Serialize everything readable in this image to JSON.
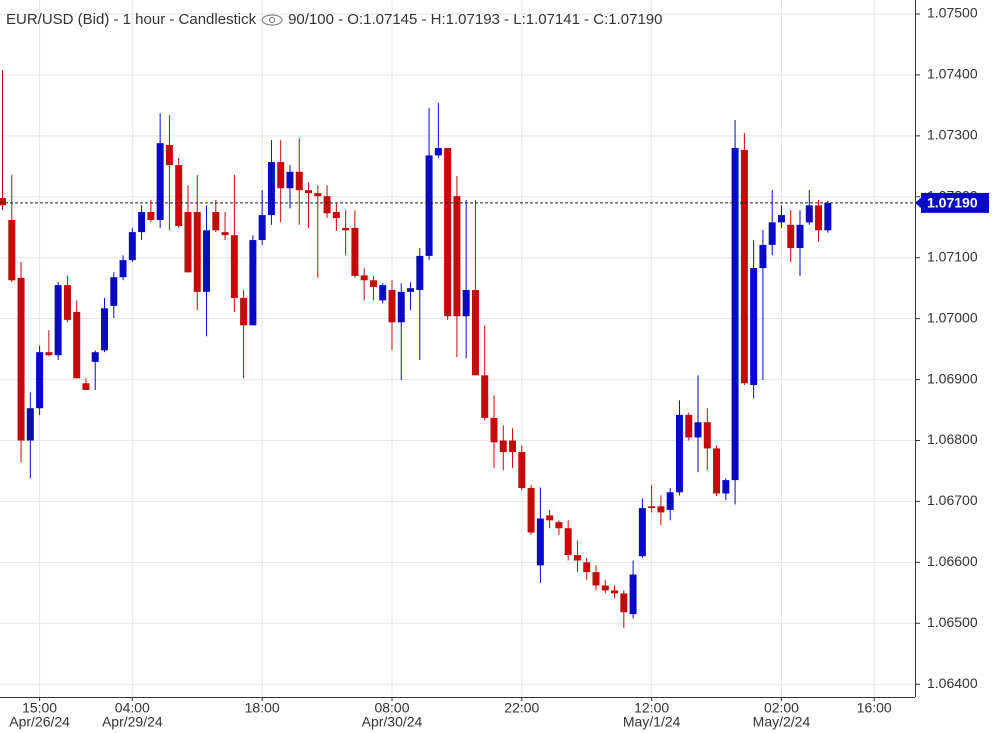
{
  "chart_data": {
    "type": "candlestick",
    "title": "EUR/USD (Bid) - 1 hour - Candlestick",
    "subtitle": "90/100 - O:1.07145 - H:1.07193 - L:1.07141 - C:1.07190",
    "up_color": "#0a0ac4",
    "down_color": "#c40a0a",
    "grid": true,
    "x": [
      0,
      1,
      2,
      3,
      4,
      5,
      6,
      7,
      8,
      9,
      10,
      11,
      12,
      13,
      14,
      15,
      16,
      17,
      18,
      19,
      20,
      21,
      22,
      23,
      24,
      25,
      26,
      27,
      28,
      29,
      30,
      31,
      32,
      33,
      34,
      35,
      36,
      37,
      38,
      39,
      40,
      41,
      42,
      43,
      44,
      45,
      46,
      47,
      48,
      49,
      50,
      51,
      52,
      53,
      54,
      55,
      56,
      57,
      58,
      59,
      60,
      61,
      62,
      63,
      64,
      65,
      66,
      67,
      68,
      69,
      70,
      71,
      72,
      73,
      74,
      75,
      76,
      77,
      78,
      79,
      80,
      81,
      82,
      83,
      84,
      85,
      86,
      87,
      88,
      89
    ],
    "open": [
      1.07198,
      1.07162,
      1.07067,
      1.068,
      1.06853,
      1.06945,
      1.0694,
      1.07055,
      1.07011,
      1.06894,
      1.06929,
      1.06948,
      1.07021,
      1.07068,
      1.07096,
      1.07142,
      1.07175,
      1.07162,
      1.07285,
      1.07252,
      1.07175,
      1.07175,
      1.07044,
      1.07175,
      1.07142,
      1.07137,
      1.07034,
      1.06989,
      1.07129,
      1.0717,
      1.07257,
      1.07214,
      1.07241,
      1.07211,
      1.07206,
      1.07201,
      1.07175,
      1.07149,
      1.07149,
      1.07071,
      1.07063,
      1.0703,
      1.07047,
      1.06994,
      1.07044,
      1.07047,
      1.07103,
      1.07268,
      1.0728,
      1.07201,
      1.07004,
      1.07047,
      1.06907,
      1.06837,
      1.068,
      1.068,
      1.06781,
      1.06722,
      1.06595,
      1.06677,
      1.06666,
      1.06656,
      1.06612,
      1.066,
      1.06584,
      1.06562,
      1.06554,
      1.06549,
      1.06515,
      1.0661,
      1.06692,
      1.06692,
      1.06686,
      1.06715,
      1.06842,
      1.06805,
      1.0683,
      1.06787,
      1.06713,
      1.06735,
      1.07277,
      1.06891,
      1.07083,
      1.07121,
      1.07158,
      1.07154,
      1.07116,
      1.07158,
      1.07186,
      1.07145
    ],
    "high": [
      1.07408,
      1.07236,
      1.07093,
      1.06879,
      1.06956,
      1.06981,
      1.0706,
      1.07071,
      1.0703,
      1.06902,
      1.06948,
      1.07034,
      1.07076,
      1.07104,
      1.07149,
      1.07186,
      1.07195,
      1.07337,
      1.07334,
      1.07264,
      1.07219,
      1.07236,
      1.07186,
      1.07195,
      1.07175,
      1.07236,
      1.07047,
      1.07137,
      1.07211,
      1.07293,
      1.07293,
      1.07252,
      1.07296,
      1.07224,
      1.07219,
      1.07219,
      1.0719,
      1.07178,
      1.07178,
      1.07083,
      1.0707,
      1.07058,
      1.07063,
      1.07058,
      1.0706,
      1.07116,
      1.07346,
      1.07354,
      1.0728,
      1.07234,
      1.07195,
      1.07195,
      1.06989,
      1.06874,
      1.06825,
      1.0682,
      1.06792,
      1.06727,
      1.06723,
      1.06686,
      1.06669,
      1.06669,
      1.06636,
      1.06607,
      1.06595,
      1.06571,
      1.06562,
      1.06554,
      1.06603,
      1.06705,
      1.06727,
      1.0671,
      1.06722,
      1.06866,
      1.06846,
      1.06907,
      1.06853,
      1.06792,
      1.06738,
      1.07326,
      1.07305,
      1.07129,
      1.07145,
      1.07211,
      1.07186,
      1.07178,
      1.07178,
      1.07211,
      1.07195,
      1.07193
    ],
    "low": [
      1.07178,
      1.0706,
      1.06764,
      1.06738,
      1.06842,
      1.06938,
      1.06932,
      1.06994,
      1.06902,
      1.06883,
      1.06883,
      1.06945,
      1.07001,
      1.07063,
      1.07093,
      1.07129,
      1.07158,
      1.07149,
      1.07145,
      1.07149,
      1.07076,
      1.07014,
      1.06971,
      1.07142,
      1.07129,
      1.07011,
      1.06902,
      1.06989,
      1.07121,
      1.07154,
      1.07158,
      1.07181,
      1.07154,
      1.07149,
      1.07067,
      1.07165,
      1.07144,
      1.07104,
      1.07067,
      1.0703,
      1.0703,
      1.07025,
      1.06948,
      1.06899,
      1.07014,
      1.06932,
      1.07096,
      1.07264,
      1.06998,
      1.06937,
      1.06935,
      1.06907,
      1.06833,
      1.06755,
      1.06751,
      1.06755,
      1.06718,
      1.06645,
      1.06566,
      1.06656,
      1.06645,
      1.06603,
      1.06584,
      1.06571,
      1.06554,
      1.06549,
      1.06541,
      1.06492,
      1.06508,
      1.06607,
      1.06682,
      1.06661,
      1.06669,
      1.0671,
      1.068,
      1.06748,
      1.06751,
      1.06709,
      1.06702,
      1.06695,
      1.06891,
      1.06869,
      1.06899,
      1.07104,
      1.07149,
      1.07093,
      1.0707,
      1.07154,
      1.07126,
      1.07141
    ],
    "close": [
      1.07186,
      1.07063,
      1.068,
      1.06853,
      1.06945,
      1.0694,
      1.07055,
      1.06998,
      1.06902,
      1.06883,
      1.06945,
      1.07017,
      1.07068,
      1.07096,
      1.07142,
      1.07175,
      1.07162,
      1.07288,
      1.07252,
      1.07152,
      1.07076,
      1.07044,
      1.07145,
      1.07145,
      1.07137,
      1.07034,
      1.06989,
      1.07129,
      1.0717,
      1.07257,
      1.07214,
      1.07241,
      1.07211,
      1.07206,
      1.07201,
      1.07173,
      1.07165,
      1.07145,
      1.0707,
      1.07063,
      1.07052,
      1.07055,
      1.06994,
      1.07044,
      1.0705,
      1.07103,
      1.07268,
      1.0728,
      1.07004,
      1.07004,
      1.07047,
      1.06907,
      1.06837,
      1.06797,
      1.06781,
      1.06781,
      1.06722,
      1.06649,
      1.06672,
      1.06669,
      1.06656,
      1.06612,
      1.06603,
      1.06584,
      1.06562,
      1.06554,
      1.06549,
      1.06518,
      1.0658,
      1.06689,
      1.06689,
      1.06682,
      1.06715,
      1.06842,
      1.06805,
      1.0683,
      1.06787,
      1.06713,
      1.06735,
      1.0728,
      1.06894,
      1.07083,
      1.07121,
      1.07158,
      1.0717,
      1.07116,
      1.07154,
      1.07186,
      1.07145,
      1.0719
    ],
    "xlim": [
      -0.27,
      98.4
    ],
    "xticks": [
      {
        "value": 4,
        "label": "15:00"
      },
      {
        "value": 14,
        "label": "04:00"
      },
      {
        "value": 28,
        "label": "18:00"
      },
      {
        "value": 42,
        "label": "08:00"
      },
      {
        "value": 56,
        "label": "22:00"
      },
      {
        "value": 70,
        "label": "12:00"
      },
      {
        "value": 84,
        "label": "02:00"
      },
      {
        "value": 94,
        "label": "16:00"
      }
    ],
    "xdate_ticks": [
      {
        "value": 4,
        "label": "Apr/26/24"
      },
      {
        "value": 14,
        "label": "Apr/29/24"
      },
      {
        "value": 42,
        "label": "Apr/30/24"
      },
      {
        "value": 70,
        "label": "May/1/24"
      },
      {
        "value": 84,
        "label": "May/2/24"
      }
    ],
    "ylim": [
      1.06379,
      1.07523
    ],
    "yticks": [
      {
        "value": 1.064,
        "label": "1.06400"
      },
      {
        "value": 1.065,
        "label": "1.06500"
      },
      {
        "value": 1.066,
        "label": "1.06600"
      },
      {
        "value": 1.067,
        "label": "1.06700"
      },
      {
        "value": 1.068,
        "label": "1.06800"
      },
      {
        "value": 1.069,
        "label": "1.06900"
      },
      {
        "value": 1.07,
        "label": "1.07000"
      },
      {
        "value": 1.071,
        "label": "1.07100"
      },
      {
        "value": 1.072,
        "label": "1.07200"
      },
      {
        "value": 1.073,
        "label": "1.07300"
      },
      {
        "value": 1.074,
        "label": "1.07400"
      },
      {
        "value": 1.075,
        "label": "1.07500"
      }
    ],
    "last_price": {
      "value": 1.0719,
      "label": "1.07190"
    }
  }
}
